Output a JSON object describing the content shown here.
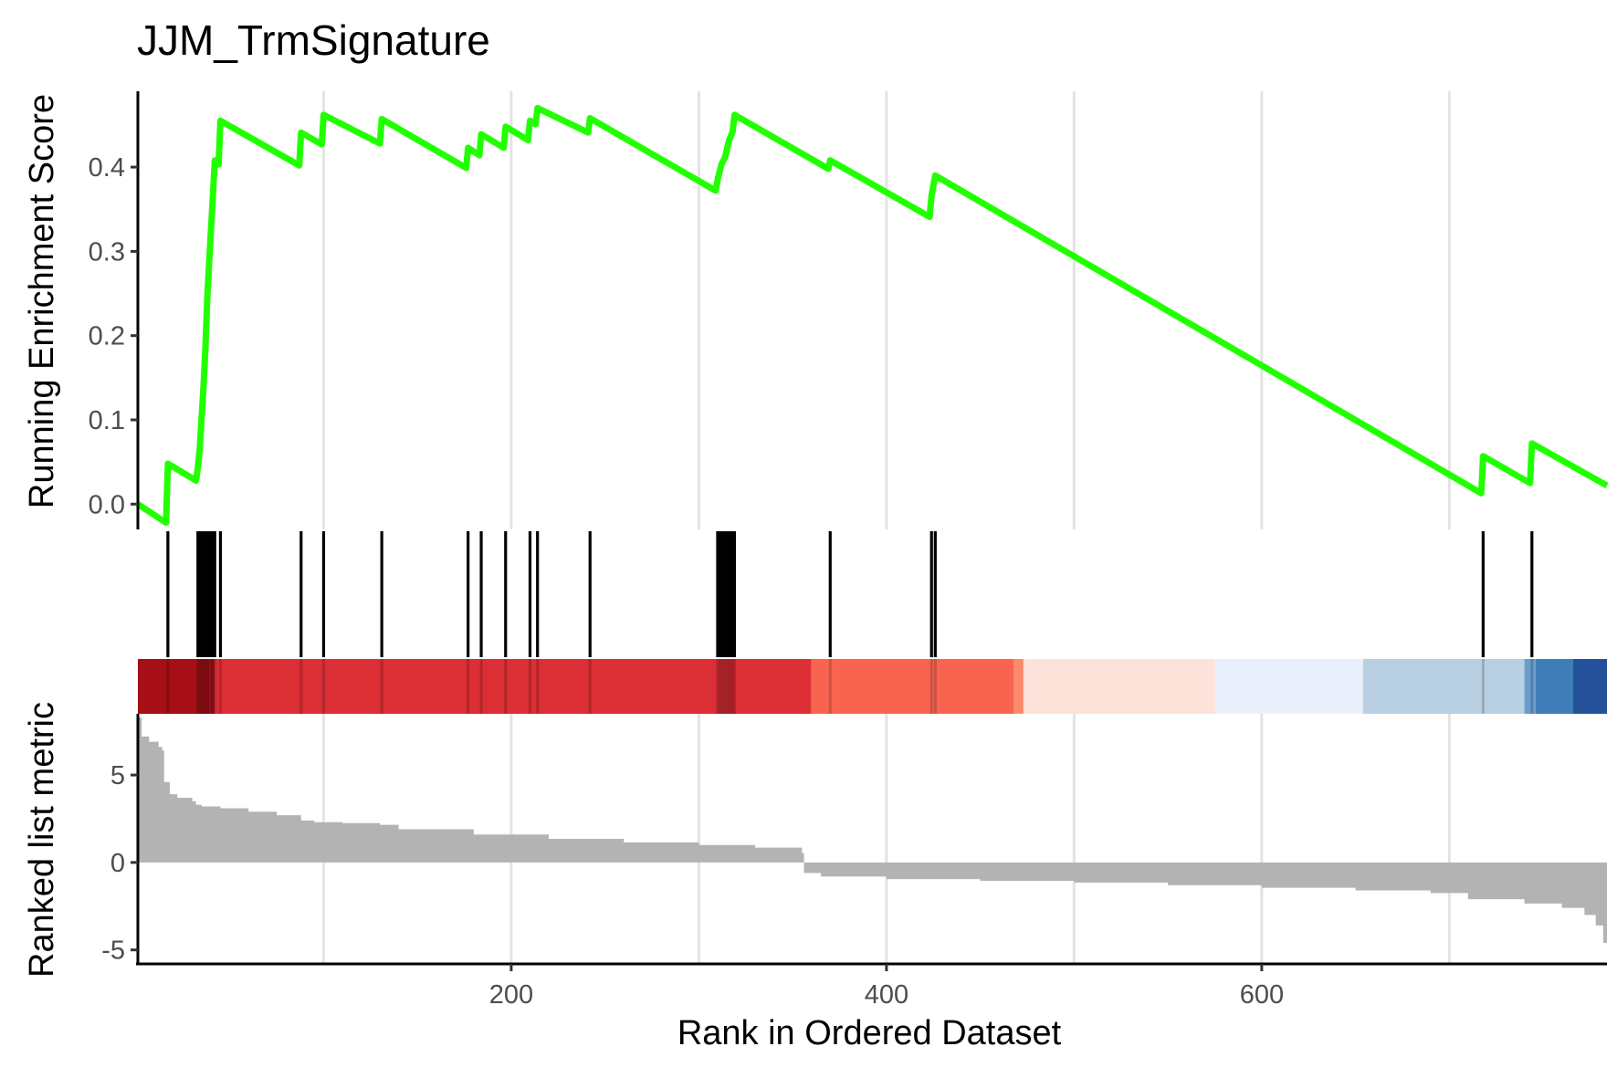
{
  "chart_data": {
    "type": "line",
    "title": "JJM_TrmSignature",
    "xlabel": "Rank in Ordered Dataset",
    "ylabel_top": "Running Enrichment Score",
    "ylabel_bottom": "Ranked list metric",
    "xlim": [
      1,
      784
    ],
    "x_ticks": [
      200,
      400,
      600
    ],
    "x_gridlines": [
      100,
      200,
      300,
      400,
      500,
      600,
      700
    ],
    "es_ylim": [
      -0.03,
      0.49
    ],
    "es_ticks": [
      0.0,
      0.1,
      0.2,
      0.3,
      0.4
    ],
    "es_tick_labels": [
      "0.0",
      "0.1",
      "0.2",
      "0.3",
      "0.4"
    ],
    "metric_ylim": [
      -5.8,
      8.5
    ],
    "metric_ticks": [
      5,
      0,
      -5
    ],
    "metric_tick_labels": [
      "5",
      "0",
      "-5"
    ],
    "line_color": "#22FF00",
    "hit_color": "#000000",
    "metric_fill": "#B3B3B3",
    "hits": [
      17,
      33,
      34,
      35,
      36,
      37,
      38,
      39,
      40,
      41,
      42,
      45,
      88,
      100,
      131,
      177,
      184,
      197,
      210,
      214,
      242,
      310,
      311,
      312,
      313,
      314,
      315,
      316,
      317,
      318,
      319,
      370,
      424,
      426,
      718,
      744
    ],
    "running_es": [
      [
        1,
        0.0
      ],
      [
        16,
        -0.022
      ],
      [
        17,
        0.048
      ],
      [
        32,
        0.028
      ],
      [
        33,
        0.044
      ],
      [
        34,
        0.066
      ],
      [
        35,
        0.104
      ],
      [
        36,
        0.14
      ],
      [
        37,
        0.185
      ],
      [
        38,
        0.245
      ],
      [
        39,
        0.287
      ],
      [
        40,
        0.327
      ],
      [
        41,
        0.367
      ],
      [
        42,
        0.408
      ],
      [
        44,
        0.403
      ],
      [
        45,
        0.455
      ],
      [
        87,
        0.402
      ],
      [
        88,
        0.441
      ],
      [
        99,
        0.427
      ],
      [
        100,
        0.462
      ],
      [
        130,
        0.428
      ],
      [
        131,
        0.457
      ],
      [
        176,
        0.399
      ],
      [
        177,
        0.423
      ],
      [
        183,
        0.414
      ],
      [
        184,
        0.439
      ],
      [
        196,
        0.423
      ],
      [
        197,
        0.448
      ],
      [
        209,
        0.432
      ],
      [
        210,
        0.455
      ],
      [
        213,
        0.451
      ],
      [
        214,
        0.47
      ],
      [
        241,
        0.441
      ],
      [
        242,
        0.458
      ],
      [
        309,
        0.372
      ],
      [
        310,
        0.385
      ],
      [
        311,
        0.394
      ],
      [
        312,
        0.403
      ],
      [
        314,
        0.412
      ],
      [
        316,
        0.431
      ],
      [
        318,
        0.442
      ],
      [
        319,
        0.462
      ],
      [
        369,
        0.398
      ],
      [
        370,
        0.408
      ],
      [
        423,
        0.341
      ],
      [
        424,
        0.366
      ],
      [
        426,
        0.39
      ],
      [
        717,
        0.013
      ],
      [
        718,
        0.057
      ],
      [
        743,
        0.025
      ],
      [
        744,
        0.072
      ],
      [
        784,
        0.022
      ]
    ],
    "color_bands": [
      {
        "from": 1,
        "to": 39,
        "color": "#A50F15"
      },
      {
        "from": 39,
        "to": 42,
        "color": "#B3101A"
      },
      {
        "from": 42,
        "to": 360,
        "color": "#DB2E35"
      },
      {
        "from": 360,
        "to": 468,
        "color": "#F96450"
      },
      {
        "from": 468,
        "to": 473,
        "color": "#FB8A6C"
      },
      {
        "from": 473,
        "to": 575,
        "color": "#FDE2D9"
      },
      {
        "from": 575,
        "to": 654,
        "color": "#EAF0FB"
      },
      {
        "from": 654,
        "to": 740,
        "color": "#B9D0E3"
      },
      {
        "from": 740,
        "to": 746,
        "color": "#6A9DCC"
      },
      {
        "from": 746,
        "to": 766,
        "color": "#3E7DB8"
      },
      {
        "from": 766,
        "to": 784,
        "color": "#25519A"
      }
    ],
    "ranked_metric_profile": [
      [
        1,
        8.3
      ],
      [
        3,
        7.2
      ],
      [
        7,
        6.9
      ],
      [
        12,
        6.6
      ],
      [
        14,
        6.4
      ],
      [
        15,
        4.6
      ],
      [
        18,
        3.9
      ],
      [
        22,
        3.7
      ],
      [
        30,
        3.5
      ],
      [
        32,
        3.3
      ],
      [
        35,
        3.2
      ],
      [
        45,
        3.1
      ],
      [
        60,
        2.9
      ],
      [
        75,
        2.7
      ],
      [
        88,
        2.4
      ],
      [
        95,
        2.3
      ],
      [
        110,
        2.25
      ],
      [
        130,
        2.15
      ],
      [
        140,
        1.9
      ],
      [
        180,
        1.6
      ],
      [
        220,
        1.35
      ],
      [
        260,
        1.15
      ],
      [
        300,
        1.0
      ],
      [
        330,
        0.85
      ],
      [
        355,
        0.55
      ],
      [
        356,
        -0.6
      ],
      [
        365,
        -0.8
      ],
      [
        400,
        -0.95
      ],
      [
        450,
        -1.05
      ],
      [
        500,
        -1.15
      ],
      [
        550,
        -1.3
      ],
      [
        600,
        -1.45
      ],
      [
        650,
        -1.6
      ],
      [
        690,
        -1.75
      ],
      [
        710,
        -2.1
      ],
      [
        740,
        -2.35
      ],
      [
        760,
        -2.6
      ],
      [
        772,
        -3.0
      ],
      [
        778,
        -3.6
      ],
      [
        782,
        -4.6
      ],
      [
        784,
        -5.2
      ]
    ]
  }
}
